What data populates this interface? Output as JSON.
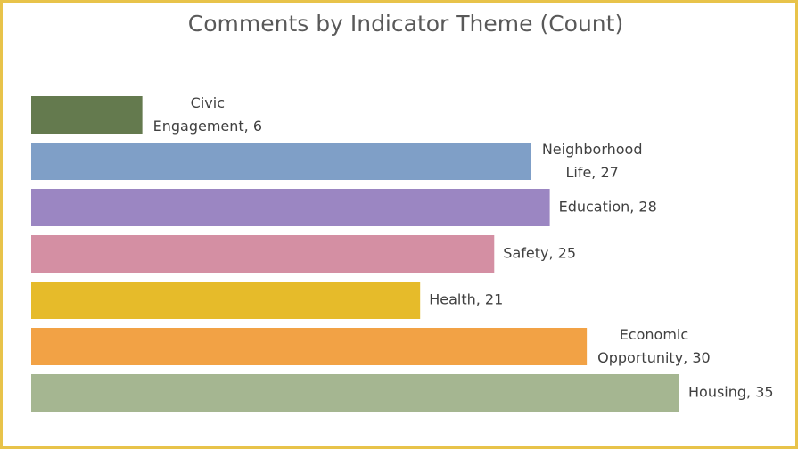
{
  "chart_data": {
    "type": "bar",
    "orientation": "horizontal",
    "title": "Comments by Indicator Theme (Count)",
    "categories": [
      "Civic Engagement",
      "Neighborhood Life",
      "Education",
      "Safety",
      "Health",
      "Economic Opportunity",
      "Housing"
    ],
    "values": [
      6,
      27,
      28,
      25,
      21,
      30,
      35
    ],
    "value_labels": [
      "Civic Engagement, 6",
      "Neighborhood Life, 27",
      "Education, 28",
      "Safety, 25",
      "Health, 21",
      "Economic Opportunity, 30",
      "Housing, 35"
    ],
    "colors": [
      "#647a4e",
      "#7f9fc7",
      "#9b86c2",
      "#d48fa3",
      "#e6bb2a",
      "#f2a245",
      "#a5b691"
    ],
    "xlim": [
      0,
      35
    ]
  }
}
